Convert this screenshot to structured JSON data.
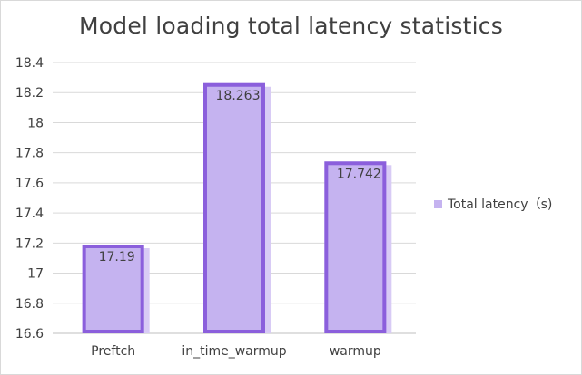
{
  "chart_data": {
    "type": "bar",
    "title": "Model loading total latency statistics",
    "categories": [
      "Preftch",
      "in_time_warmup",
      "warmup"
    ],
    "series": [
      {
        "name": "Total latency（s)",
        "values": [
          17.19,
          18.263,
          17.742
        ]
      }
    ],
    "data_labels": [
      "17.19",
      "18.263",
      "17.742"
    ],
    "ylim": [
      16.6,
      18.4
    ],
    "yticks": [
      "16.6",
      "16.8",
      "17",
      "17.2",
      "17.4",
      "17.6",
      "17.8",
      "18",
      "18.2",
      "18.4"
    ],
    "grid": true,
    "legend_position": "right",
    "colors": {
      "bar_fill": "#c5b3f0",
      "bar_outline": "#8b5fdc",
      "bar_shadow": "#d8cbf5",
      "grid": "#d9d9d9",
      "text": "#404040"
    }
  }
}
